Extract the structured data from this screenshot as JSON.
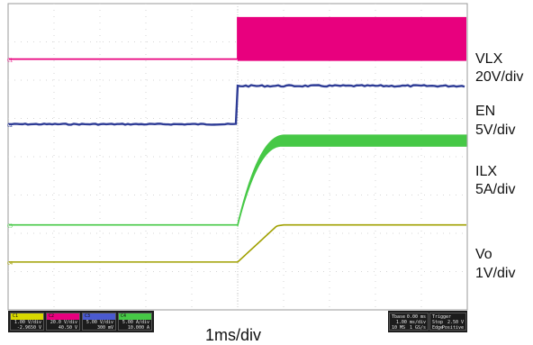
{
  "chart_data": {
    "type": "line",
    "timebase": "1ms/div",
    "divisions": {
      "x": 10,
      "y": 8
    },
    "trigger_time_div": 5.0,
    "series": [
      {
        "name": "VLX",
        "scale": "20V/div",
        "color": "#e8007e",
        "display": "switching",
        "baseline_div": 6.55,
        "low_div": 6.55,
        "high_div": 7.65,
        "step_time_div": 5.0
      },
      {
        "name": "EN",
        "scale": "5V/div",
        "color": "#2e3c96",
        "display": "step",
        "low_div": 4.85,
        "high_div": 5.85,
        "step_time_div": 5.0
      },
      {
        "name": "ILX",
        "scale": "5A/div",
        "color": "#46c846",
        "display": "ramp_band",
        "low_div": 2.22,
        "high_div": 4.42,
        "ramp_start_div": 5.0,
        "ramp_end_div": 6.0,
        "band_div": 0.3
      },
      {
        "name": "Vo",
        "scale": "1V/div",
        "color": "#a0a000",
        "display": "ramp",
        "low_div": 1.25,
        "high_div": 2.22,
        "ramp_start_div": 5.0,
        "ramp_end_div": 6.0
      }
    ]
  },
  "labels": {
    "vlx_name": "VLX",
    "vlx_scale": "20V/div",
    "en_name": "EN",
    "en_scale": "5V/div",
    "ilx_name": "ILX",
    "ilx_scale": "5A/div",
    "vo_name": "Vo",
    "vo_scale": "1V/div",
    "timebase": "1ms/div"
  },
  "status_bar": {
    "channels": [
      {
        "id": "C1",
        "color": "#d8d800",
        "scale": "1.00 V/div",
        "offset": "-2.9650 V"
      },
      {
        "id": "C2",
        "color": "#e8007e",
        "scale": "20.0 V/div",
        "offset": "40.50 V"
      },
      {
        "id": "C3",
        "color": "#4a5ad0",
        "scale": "5.00 V/div",
        "offset": "300 mV"
      },
      {
        "id": "C4",
        "color": "#46c846",
        "scale": "5.00 A/div",
        "offset": "10.000 A"
      }
    ],
    "timebase": {
      "title": "Tbase",
      "delay": "0.00 ms",
      "div": "1.00 ms/div",
      "samples": "10 MS",
      "rate": "1 GS/s"
    },
    "trigger": {
      "title": "Trigger",
      "mode": "Stop",
      "level": "2.50 V",
      "type": "Edge",
      "slope": "Positive"
    }
  }
}
